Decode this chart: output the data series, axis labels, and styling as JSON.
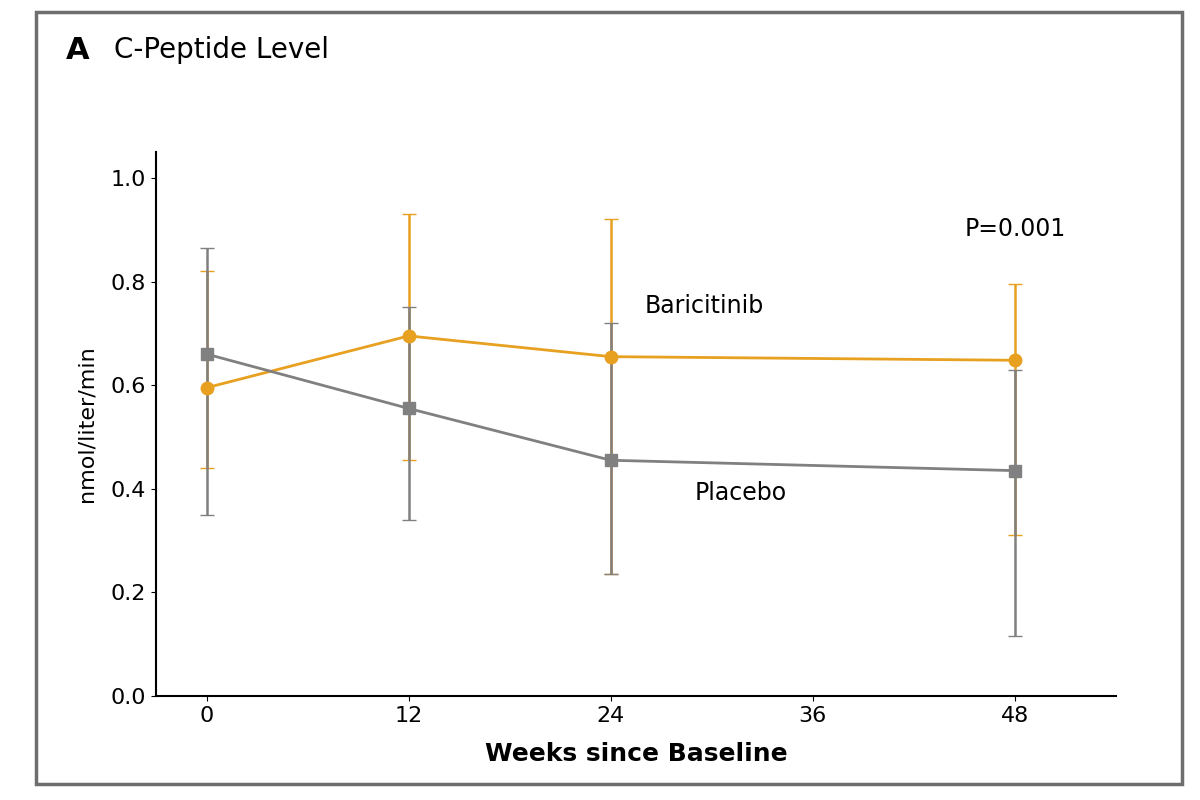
{
  "title_panel": "A",
  "title_main": "C-Peptide Level",
  "xlabel": "Weeks since Baseline",
  "ylabel": "nmol/liter/min",
  "xlim": [
    -3,
    54
  ],
  "ylim": [
    0.0,
    1.05
  ],
  "xticks": [
    0,
    12,
    24,
    36,
    48
  ],
  "yticks": [
    0.0,
    0.2,
    0.4,
    0.6,
    0.8,
    1.0
  ],
  "weeks": [
    0,
    12,
    24,
    48
  ],
  "baricitinib_mean": [
    0.595,
    0.695,
    0.655,
    0.648
  ],
  "baricitinib_upper": [
    0.82,
    0.93,
    0.92,
    0.795
  ],
  "baricitinib_lower": [
    0.44,
    0.455,
    0.235,
    0.31
  ],
  "placebo_mean": [
    0.66,
    0.555,
    0.455,
    0.435
  ],
  "placebo_upper": [
    0.865,
    0.75,
    0.72,
    0.63
  ],
  "placebo_lower": [
    0.35,
    0.34,
    0.235,
    0.115
  ],
  "baricitinib_color": "#E8A020",
  "placebo_color": "#808080",
  "pvalue_text": "P=0.001",
  "background_color": "#ffffff",
  "border_color": "#6e6e6e",
  "linewidth": 2.0,
  "markersize": 9,
  "capsize": 5,
  "elinewidth": 1.8
}
